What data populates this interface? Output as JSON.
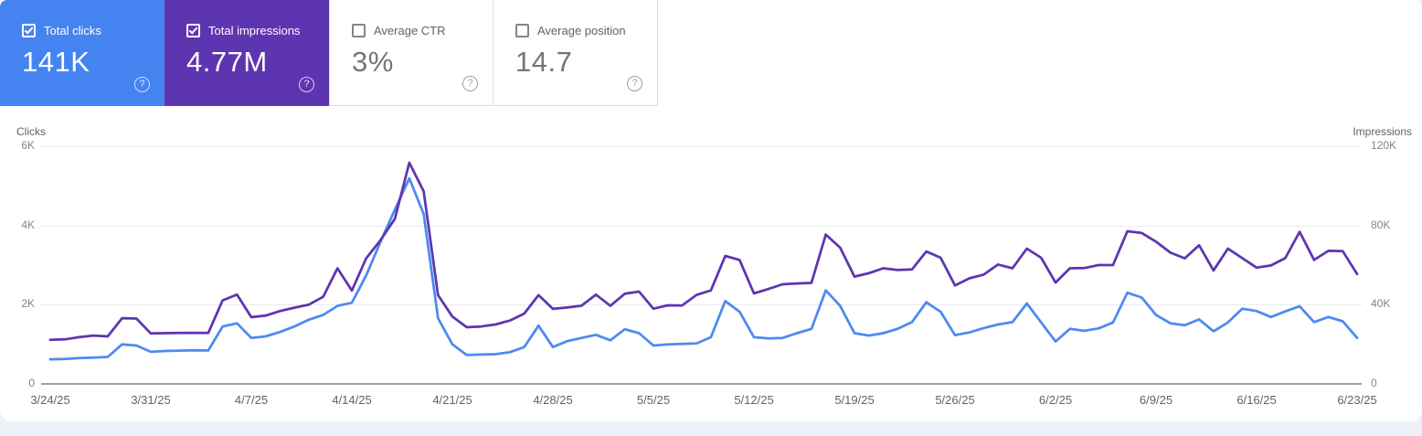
{
  "icons": {
    "help": "?"
  },
  "cards": [
    {
      "label": "Total clicks",
      "value": "141K",
      "checked": true,
      "selected": true,
      "bg": "#4584f0"
    },
    {
      "label": "Total impressions",
      "value": "4.77M",
      "checked": true,
      "selected": true,
      "bg": "#5e35b1"
    },
    {
      "label": "Average CTR",
      "value": "3%",
      "checked": false,
      "selected": false,
      "bg": ""
    },
    {
      "label": "Average position",
      "value": "14.7",
      "checked": false,
      "selected": false,
      "bg": ""
    }
  ],
  "chart_data": {
    "type": "line",
    "x_unit": "day",
    "x_tick_labels": [
      "3/24/25",
      "3/31/25",
      "4/7/25",
      "4/14/25",
      "4/21/25",
      "4/28/25",
      "5/5/25",
      "5/12/25",
      "5/19/25",
      "5/26/25",
      "6/2/25",
      "6/9/25",
      "6/16/25",
      "6/23/25"
    ],
    "left_axis": {
      "title": "Clicks",
      "tick_labels_top_to_bottom": [
        "6K",
        "4K",
        "2K",
        "0"
      ],
      "ylim": [
        0,
        6000
      ]
    },
    "right_axis": {
      "title": "Impressions",
      "tick_labels_top_to_bottom": [
        "120K",
        "80K",
        "40K",
        "0"
      ],
      "ylim": [
        0,
        120000
      ]
    },
    "grid": "horizontal",
    "series": [
      {
        "name": "Total clicks",
        "axis": "left",
        "color": "#4d8af0",
        "ymax": 6000,
        "values": [
          620,
          630,
          650,
          665,
          680,
          1000,
          970,
          810,
          830,
          840,
          850,
          845,
          1450,
          1530,
          1160,
          1200,
          1310,
          1450,
          1620,
          1740,
          1970,
          2050,
          2740,
          3590,
          4400,
          5190,
          4290,
          1660,
          1000,
          730,
          740,
          750,
          800,
          930,
          1470,
          930,
          1080,
          1160,
          1240,
          1100,
          1380,
          1280,
          970,
          1000,
          1010,
          1020,
          1180,
          2090,
          1820,
          1180,
          1150,
          1160,
          1280,
          1390,
          2360,
          1970,
          1280,
          1220,
          1280,
          1390,
          1560,
          2060,
          1820,
          1230,
          1300,
          1410,
          1500,
          1560,
          2030,
          1550,
          1070,
          1390,
          1340,
          1400,
          1550,
          2300,
          2180,
          1740,
          1530,
          1480,
          1630,
          1330,
          1550,
          1900,
          1840,
          1690,
          1830,
          1960,
          1560,
          1690,
          1580,
          1160
        ]
      },
      {
        "name": "Total impressions",
        "axis": "right",
        "color": "#5e35b1",
        "ymax": 120000,
        "values": [
          22300,
          22500,
          23600,
          24400,
          24000,
          33200,
          33000,
          25500,
          25600,
          25700,
          25800,
          25700,
          42200,
          45100,
          33700,
          34500,
          36800,
          38500,
          40000,
          44000,
          58400,
          47100,
          63400,
          72600,
          83400,
          111700,
          97300,
          44800,
          34000,
          28600,
          29000,
          30000,
          32000,
          35500,
          44800,
          37900,
          38600,
          39500,
          45100,
          39400,
          45500,
          46600,
          38000,
          39700,
          39600,
          44900,
          47200,
          64600,
          62600,
          45700,
          47900,
          50300,
          50700,
          51000,
          75400,
          68800,
          54200,
          55900,
          58400,
          57500,
          57800,
          66900,
          63700,
          49700,
          53300,
          55200,
          60300,
          58400,
          68300,
          63700,
          51200,
          58400,
          58500,
          60000,
          60000,
          77100,
          76200,
          71800,
          66300,
          63400,
          70000,
          57300,
          68300,
          63500,
          58700,
          59800,
          63500,
          76800,
          62600,
          67200,
          67000,
          55500
        ]
      }
    ]
  }
}
